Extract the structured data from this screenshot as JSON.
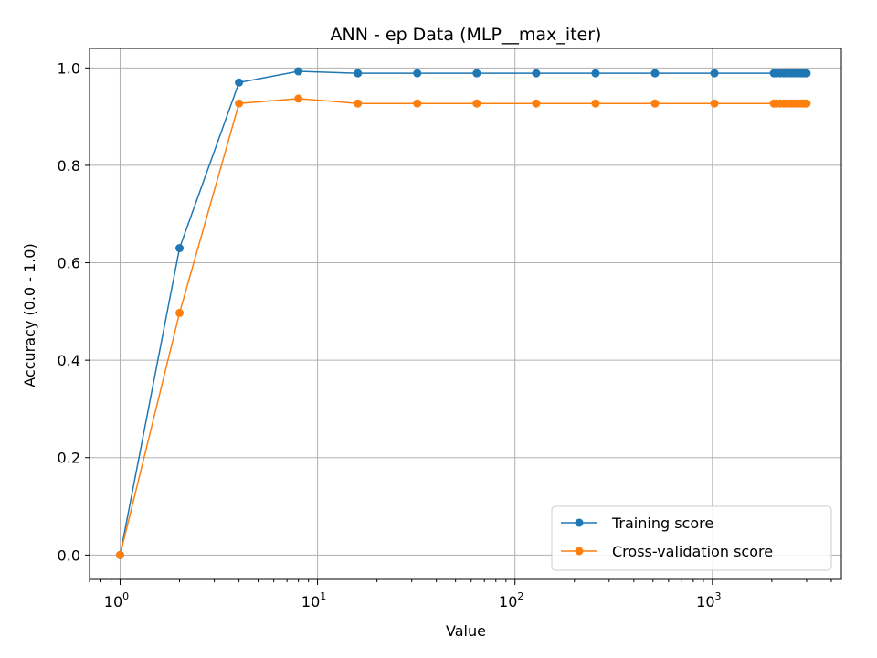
{
  "chart_data": {
    "type": "line",
    "title": "ANN - ep Data (MLP__max_iter)",
    "xlabel": "Value",
    "ylabel": "Accuracy (0.0 - 1.0)",
    "xscale": "log",
    "xlim": [
      0.7,
      4500
    ],
    "ylim": [
      -0.05,
      1.04
    ],
    "x_ticks": [
      {
        "base": "10",
        "exp": "0",
        "value": 1
      },
      {
        "base": "10",
        "exp": "1",
        "value": 10
      },
      {
        "base": "10",
        "exp": "2",
        "value": 100
      },
      {
        "base": "10",
        "exp": "3",
        "value": 1000
      }
    ],
    "y_ticks": [
      "0.0",
      "0.2",
      "0.4",
      "0.6",
      "0.8",
      "1.0"
    ],
    "grid": true,
    "legend_position": "bottom-right",
    "x": [
      1,
      2,
      4,
      8,
      16,
      32,
      64,
      128,
      256,
      512,
      1024,
      2048,
      2100,
      2200,
      2300,
      2400,
      2500,
      2600,
      2700,
      2800,
      2900,
      3000
    ],
    "series": [
      {
        "name": "Training score",
        "color": "#1f77b4",
        "values": [
          0.0,
          0.63,
          0.97,
          0.993,
          0.989,
          0.989,
          0.989,
          0.989,
          0.989,
          0.989,
          0.989,
          0.989,
          0.989,
          0.989,
          0.989,
          0.989,
          0.989,
          0.989,
          0.989,
          0.989,
          0.989,
          0.989
        ]
      },
      {
        "name": "Cross-validation score",
        "color": "#ff7f0e",
        "values": [
          0.0,
          0.497,
          0.927,
          0.937,
          0.927,
          0.927,
          0.927,
          0.927,
          0.927,
          0.927,
          0.927,
          0.927,
          0.927,
          0.927,
          0.927,
          0.927,
          0.927,
          0.927,
          0.927,
          0.927,
          0.927,
          0.927
        ]
      }
    ]
  }
}
